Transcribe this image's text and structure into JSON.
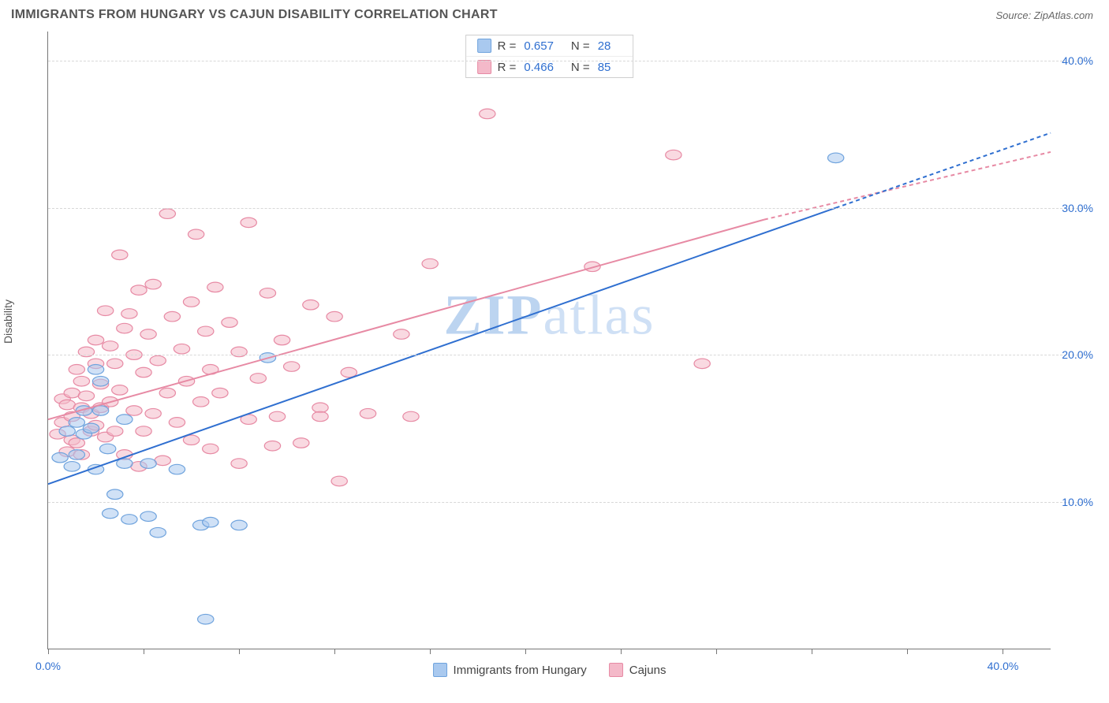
{
  "title": "IMMIGRANTS FROM HUNGARY VS CAJUN DISABILITY CORRELATION CHART",
  "source_label": "Source: ZipAtlas.com",
  "ylabel": "Disability",
  "watermark": {
    "bold": "ZIP",
    "rest": "atlas"
  },
  "chart": {
    "type": "scatter",
    "background_color": "#ffffff",
    "grid_color": "#d8d8d8",
    "axis_color": "#777777",
    "xlim": [
      0,
      42
    ],
    "ylim": [
      0,
      42
    ],
    "y_ticks": [
      10,
      20,
      30,
      40
    ],
    "y_tick_labels": [
      "10.0%",
      "20.0%",
      "30.0%",
      "40.0%"
    ],
    "x_tick_positions": [
      0,
      4,
      8,
      12,
      16,
      20,
      24,
      28,
      32,
      36,
      40
    ],
    "x_tick_labels": {
      "0": "0.0%",
      "40": "40.0%"
    },
    "marker_radius": 8,
    "marker_opacity": 0.55,
    "line_width": 2,
    "dash_pattern": "5,4",
    "label_fontsize": 14,
    "tick_color": "#2f6fd0"
  },
  "series": {
    "hungary": {
      "label": "Immigrants from Hungary",
      "color_fill": "#a9c9ef",
      "color_stroke": "#6fa3dd",
      "R": "0.657",
      "N": "28",
      "regression_solid": {
        "x1": 0,
        "y1": 11.2,
        "x2": 33,
        "y2": 30.0
      },
      "regression_dash": {
        "x1": 33,
        "y1": 30.0,
        "x2": 42,
        "y2": 35.1
      },
      "points": [
        [
          0.5,
          13.0
        ],
        [
          0.8,
          14.8
        ],
        [
          1.0,
          12.4
        ],
        [
          1.2,
          15.4
        ],
        [
          1.2,
          13.2
        ],
        [
          1.5,
          16.2
        ],
        [
          1.5,
          14.6
        ],
        [
          1.8,
          15.0
        ],
        [
          2.0,
          19.0
        ],
        [
          2.0,
          12.2
        ],
        [
          2.2,
          18.2
        ],
        [
          2.2,
          16.2
        ],
        [
          2.5,
          13.6
        ],
        [
          2.6,
          9.2
        ],
        [
          2.8,
          10.5
        ],
        [
          3.2,
          12.6
        ],
        [
          3.2,
          15.6
        ],
        [
          3.4,
          8.8
        ],
        [
          4.2,
          12.6
        ],
        [
          4.2,
          9.0
        ],
        [
          4.6,
          7.9
        ],
        [
          5.4,
          12.2
        ],
        [
          6.4,
          8.4
        ],
        [
          6.6,
          2.0
        ],
        [
          6.8,
          8.6
        ],
        [
          8.0,
          8.4
        ],
        [
          9.2,
          19.8
        ],
        [
          33.0,
          33.4
        ]
      ]
    },
    "cajuns": {
      "label": "Cajuns",
      "color_fill": "#f4b9c9",
      "color_stroke": "#e78aa4",
      "R": "0.466",
      "N": "85",
      "regression_solid": {
        "x1": 0,
        "y1": 15.6,
        "x2": 30,
        "y2": 29.2
      },
      "regression_dash": {
        "x1": 30,
        "y1": 29.2,
        "x2": 42,
        "y2": 33.8
      },
      "points": [
        [
          0.4,
          14.6
        ],
        [
          0.6,
          15.4
        ],
        [
          0.6,
          17.0
        ],
        [
          0.8,
          13.4
        ],
        [
          0.8,
          16.6
        ],
        [
          1.0,
          14.2
        ],
        [
          1.0,
          17.4
        ],
        [
          1.0,
          15.8
        ],
        [
          1.2,
          19.0
        ],
        [
          1.2,
          14.0
        ],
        [
          1.4,
          16.4
        ],
        [
          1.4,
          18.2
        ],
        [
          1.4,
          13.2
        ],
        [
          1.6,
          20.2
        ],
        [
          1.6,
          17.2
        ],
        [
          1.8,
          14.8
        ],
        [
          1.8,
          16.0
        ],
        [
          2.0,
          19.4
        ],
        [
          2.0,
          21.0
        ],
        [
          2.0,
          15.2
        ],
        [
          2.2,
          16.4
        ],
        [
          2.2,
          18.0
        ],
        [
          2.4,
          23.0
        ],
        [
          2.4,
          14.4
        ],
        [
          2.6,
          20.6
        ],
        [
          2.6,
          16.8
        ],
        [
          2.8,
          19.4
        ],
        [
          2.8,
          14.8
        ],
        [
          3.0,
          26.8
        ],
        [
          3.0,
          17.6
        ],
        [
          3.2,
          21.8
        ],
        [
          3.2,
          13.2
        ],
        [
          3.4,
          22.8
        ],
        [
          3.6,
          16.2
        ],
        [
          3.6,
          20.0
        ],
        [
          3.8,
          24.4
        ],
        [
          3.8,
          12.4
        ],
        [
          4.0,
          18.8
        ],
        [
          4.0,
          14.8
        ],
        [
          4.2,
          21.4
        ],
        [
          4.4,
          24.8
        ],
        [
          4.4,
          16.0
        ],
        [
          4.6,
          19.6
        ],
        [
          4.8,
          12.8
        ],
        [
          5.0,
          29.6
        ],
        [
          5.0,
          17.4
        ],
        [
          5.2,
          22.6
        ],
        [
          5.4,
          15.4
        ],
        [
          5.6,
          20.4
        ],
        [
          5.8,
          18.2
        ],
        [
          6.0,
          23.6
        ],
        [
          6.0,
          14.2
        ],
        [
          6.2,
          28.2
        ],
        [
          6.4,
          16.8
        ],
        [
          6.6,
          21.6
        ],
        [
          6.8,
          13.6
        ],
        [
          6.8,
          19.0
        ],
        [
          7.0,
          24.6
        ],
        [
          7.2,
          17.4
        ],
        [
          7.6,
          22.2
        ],
        [
          8.0,
          20.2
        ],
        [
          8.0,
          12.6
        ],
        [
          8.4,
          15.6
        ],
        [
          8.4,
          29.0
        ],
        [
          8.8,
          18.4
        ],
        [
          9.2,
          24.2
        ],
        [
          9.4,
          13.8
        ],
        [
          9.6,
          15.8
        ],
        [
          9.8,
          21.0
        ],
        [
          10.2,
          19.2
        ],
        [
          10.6,
          14.0
        ],
        [
          11.0,
          23.4
        ],
        [
          11.4,
          16.4
        ],
        [
          11.4,
          15.8
        ],
        [
          12.0,
          22.6
        ],
        [
          12.2,
          11.4
        ],
        [
          12.6,
          18.8
        ],
        [
          13.4,
          16.0
        ],
        [
          14.8,
          21.4
        ],
        [
          15.2,
          15.8
        ],
        [
          16.0,
          26.2
        ],
        [
          18.4,
          36.4
        ],
        [
          22.8,
          26.0
        ],
        [
          26.2,
          33.6
        ],
        [
          27.4,
          19.4
        ]
      ]
    }
  },
  "legend_top": {
    "r_label": "R =",
    "n_label": "N ="
  }
}
